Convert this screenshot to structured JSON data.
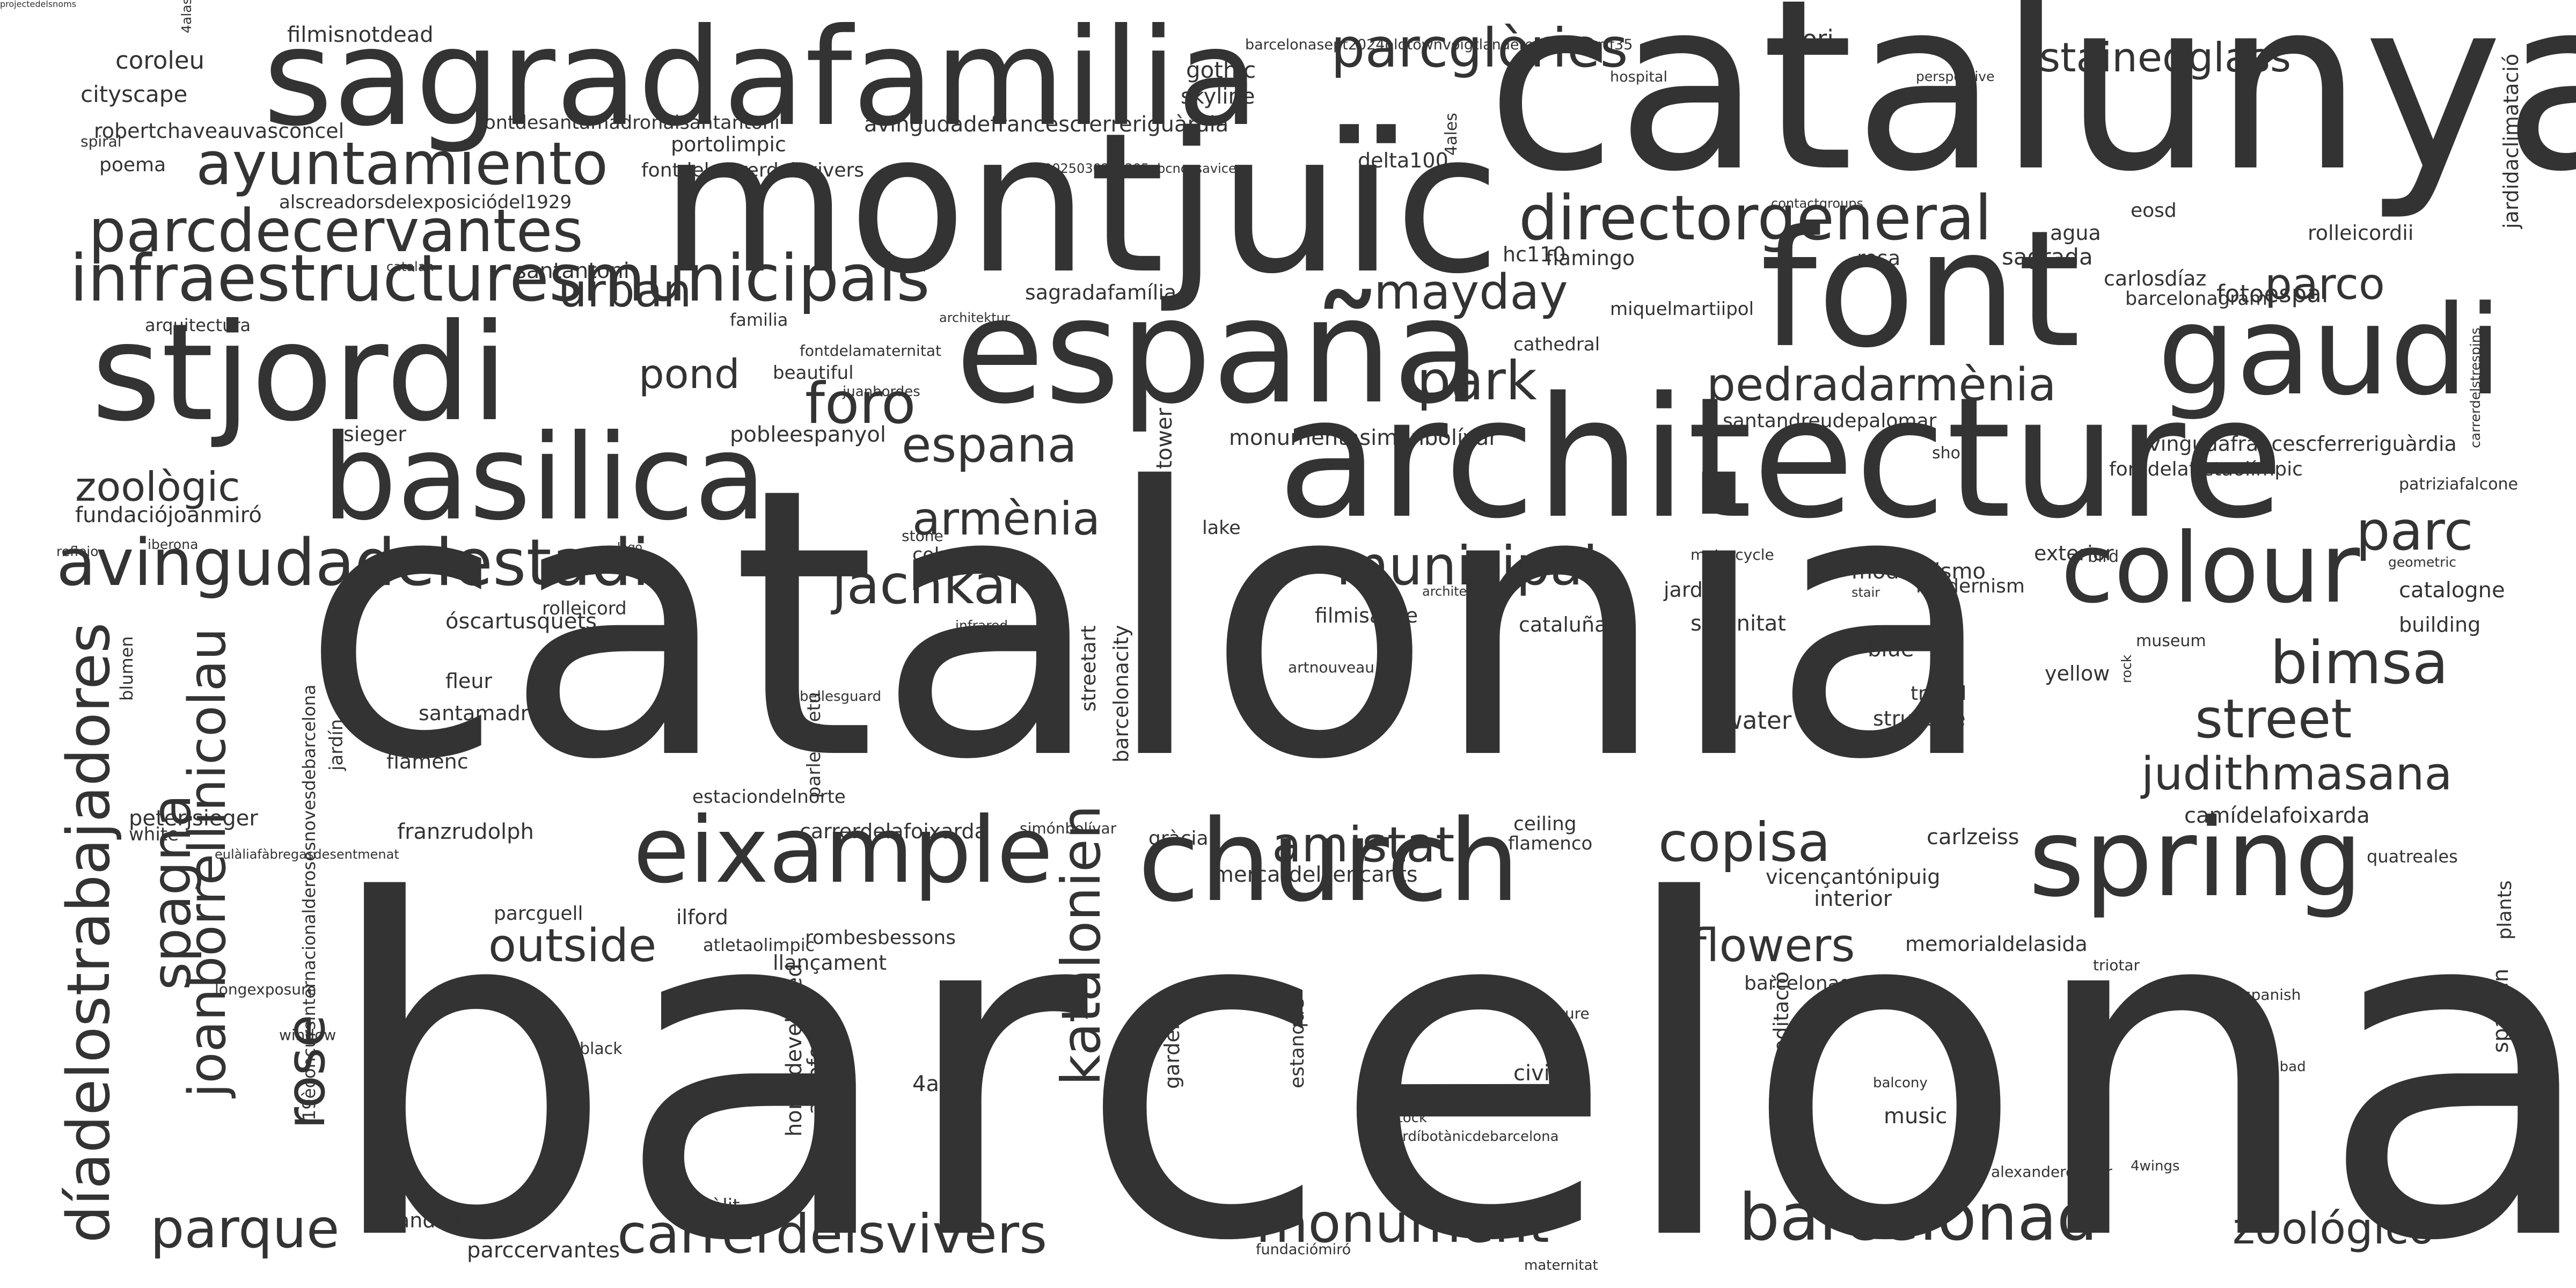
{
  "text_color": "#333333",
  "background_color": "#ffffff",
  "words": [
    {
      "text": "barcelona",
      "weight": 1.0
    },
    {
      "text": "catalonia",
      "weight": 0.82
    },
    {
      "text": "catalunya",
      "weight": 0.5
    },
    {
      "text": "montjuïc",
      "weight": 0.44
    },
    {
      "text": "architecture",
      "weight": 0.38
    },
    {
      "text": "sagradafamilia",
      "weight": 0.34
    },
    {
      "text": "font",
      "weight": 0.33
    },
    {
      "text": "españa",
      "weight": 0.3
    },
    {
      "text": "stjordi",
      "weight": 0.29
    },
    {
      "text": "gaudi",
      "weight": 0.29
    },
    {
      "text": "basilica",
      "weight": 0.27
    },
    {
      "text": "church",
      "weight": 0.26
    },
    {
      "text": "spring",
      "weight": 0.26
    },
    {
      "text": "colour",
      "weight": 0.21
    },
    {
      "text": "eixample",
      "weight": 0.2
    },
    {
      "text": "infraestructuresmunicipals",
      "weight": 0.15
    },
    {
      "text": "avingudadelestadi",
      "weight": 0.15
    },
    {
      "text": "díadelostrabajadores",
      "weight": 0.15
    },
    {
      "text": "barcelonad",
      "weight": 0.15
    },
    {
      "text": "ayuntamiento",
      "weight": 0.14
    },
    {
      "text": "directorgeneral",
      "weight": 0.14
    },
    {
      "text": "joanborrellinicolau",
      "weight": 0.14
    },
    {
      "text": "parcdecervantes",
      "weight": 0.13
    },
    {
      "text": "parcglòries",
      "weight": 0.13
    },
    {
      "text": "mayday",
      "weight": 0.13
    },
    {
      "text": "foro",
      "weight": 0.13
    },
    {
      "text": "park",
      "weight": 0.13
    },
    {
      "text": "pedradarmènia",
      "weight": 0.13
    },
    {
      "text": "espana",
      "weight": 0.13
    },
    {
      "text": "armènia",
      "weight": 0.13
    },
    {
      "text": "municipal",
      "weight": 0.13
    },
    {
      "text": "jachkar",
      "weight": 0.13
    },
    {
      "text": "bimsa",
      "weight": 0.13
    },
    {
      "text": "street",
      "weight": 0.13
    },
    {
      "text": "copisa",
      "weight": 0.13
    },
    {
      "text": "amistat",
      "weight": 0.13
    },
    {
      "text": "outside",
      "weight": 0.13
    },
    {
      "text": "flowers",
      "weight": 0.13
    },
    {
      "text": "parque",
      "weight": 0.13
    },
    {
      "text": "carrerdelsvivers",
      "weight": 0.13
    },
    {
      "text": "monument",
      "weight": 0.13
    },
    {
      "text": "zoológico",
      "weight": 0.13
    },
    {
      "text": "judithmasana",
      "weight": 0.13
    },
    {
      "text": "parc",
      "weight": 0.13
    },
    {
      "text": "rose",
      "weight": 0.13
    },
    {
      "text": "katalonien",
      "weight": 0.13
    },
    {
      "text": "spagna",
      "weight": 0.13
    },
    {
      "text": "stainedglass",
      "weight": 0.11
    },
    {
      "text": "urban",
      "weight": 0.11
    },
    {
      "text": "parco",
      "weight": 0.11
    },
    {
      "text": "pond",
      "weight": 0.11
    },
    {
      "text": "zoològic",
      "weight": 0.11
    },
    {
      "text": "coroleu",
      "weight": 0.06
    },
    {
      "text": "cityscape",
      "weight": 0.06
    },
    {
      "text": "filmisnotdead",
      "weight": 0.06
    },
    {
      "text": "gothic",
      "weight": 0.06
    },
    {
      "text": "skyline",
      "weight": 0.06
    },
    {
      "text": "fiori",
      "weight": 0.06
    },
    {
      "text": "robertchaveauvasconcel",
      "weight": 0.06
    },
    {
      "text": "fontdesantamadronaisantantoni",
      "weight": 0.05
    },
    {
      "text": "avingudadefrancescferreriguàrdia",
      "weight": 0.06
    },
    {
      "text": "portolimpic",
      "weight": 0.06
    },
    {
      "text": "poema",
      "weight": 0.06
    },
    {
      "text": "fontdelcarrerdelsvivers",
      "weight": 0.06
    },
    {
      "text": "alscreadorsdelexposiciódel1929",
      "weight": 0.06
    },
    {
      "text": "santantoni",
      "weight": 0.06
    },
    {
      "text": "arquitectura",
      "weight": 0.05
    },
    {
      "text": "familia",
      "weight": 0.06
    },
    {
      "text": "architektur",
      "weight": 0.04
    },
    {
      "text": "delta100",
      "weight": 0.06
    },
    {
      "text": "hc110",
      "weight": 0.06
    },
    {
      "text": "flamingo",
      "weight": 0.06
    },
    {
      "text": "rosa",
      "weight": 0.06
    },
    {
      "text": "sagrada",
      "weight": 0.06
    },
    {
      "text": "agua",
      "weight": 0.06
    },
    {
      "text": "eosd",
      "weight": 0.06
    },
    {
      "text": "rolleicordii",
      "weight": 0.06
    },
    {
      "text": "carlosdíaz",
      "weight": 0.06
    },
    {
      "text": "fotoespai",
      "weight": 0.07
    },
    {
      "text": "sagradafamília",
      "weight": 0.06
    },
    {
      "text": "miquelmartiipol",
      "weight": 0.06
    },
    {
      "text": "cathedral",
      "weight": 0.06
    },
    {
      "text": "barcelonagram",
      "weight": 0.06
    },
    {
      "text": "fontdelamaternitat",
      "weight": 0.06
    },
    {
      "text": "beautiful",
      "weight": 0.04
    },
    {
      "text": "juanbordes",
      "weight": 0.06
    },
    {
      "text": "pobleespanyol",
      "weight": 0.04
    },
    {
      "text": "sieger",
      "weight": 0.07
    },
    {
      "text": "monumentasimónbolívar",
      "weight": 0.06
    },
    {
      "text": "santandreudepalomar",
      "weight": 0.07
    },
    {
      "text": "avingudafrancescferreriguàrdia",
      "weight": 0.06
    },
    {
      "text": "fontdelatletaolímpic",
      "weight": 0.06
    },
    {
      "text": "patriziafalcone",
      "weight": 0.06
    },
    {
      "text": "shop",
      "weight": 0.05
    },
    {
      "text": "stone",
      "weight": 0.05
    },
    {
      "text": "fundaciójoanmiró",
      "weight": 0.05
    },
    {
      "text": "reflejo",
      "weight": 0.06
    },
    {
      "text": "iberona",
      "weight": 0.04
    },
    {
      "text": "lago",
      "weight": 0.04
    },
    {
      "text": "lake",
      "weight": 0.04
    },
    {
      "text": "column",
      "weight": 0.05
    },
    {
      "text": "modernismo",
      "weight": 0.05
    },
    {
      "text": "exterior",
      "weight": 0.07
    },
    {
      "text": "bird",
      "weight": 0.06
    },
    {
      "text": "modernism",
      "weight": 0.05
    },
    {
      "text": "jardí",
      "weight": 0.06
    },
    {
      "text": "serenitat",
      "weight": 0.06
    },
    {
      "text": "cataluña",
      "weight": 0.06
    },
    {
      "text": "filmisalive",
      "weight": 0.06
    },
    {
      "text": "catalogne",
      "weight": 0.06
    },
    {
      "text": "building",
      "weight": 0.06
    },
    {
      "text": "rolleicord",
      "weight": 0.06
    },
    {
      "text": "óscartusquets",
      "weight": 0.05
    },
    {
      "text": "infrared",
      "weight": 0.06
    },
    {
      "text": "museum",
      "weight": 0.04
    },
    {
      "text": "blue",
      "weight": 0.05
    },
    {
      "text": "yellow",
      "weight": 0.06
    },
    {
      "text": "travel",
      "weight": 0.06
    },
    {
      "text": "structure",
      "weight": 0.06
    },
    {
      "text": "water",
      "weight": 0.06
    },
    {
      "text": "fleur",
      "weight": 0.07
    },
    {
      "text": "santamadrona",
      "weight": 0.06
    },
    {
      "text": "flamenc",
      "weight": 0.06
    },
    {
      "text": "bellesguard",
      "weight": 0.06
    },
    {
      "text": "estaciondelnorte",
      "weight": 0.04
    },
    {
      "text": "white",
      "weight": 0.05
    },
    {
      "text": "franzrudolph",
      "weight": 0.05
    },
    {
      "text": "carrerdelafoixarda",
      "weight": 0.06
    },
    {
      "text": "simónbolívar",
      "weight": 0.06
    },
    {
      "text": "gràcia",
      "weight": 0.04
    },
    {
      "text": "ceiling",
      "weight": 0.05
    },
    {
      "text": "flamenco",
      "weight": 0.06
    },
    {
      "text": "carlzeiss",
      "weight": 0.05
    },
    {
      "text": "camídelafoixarda",
      "weight": 0.06
    },
    {
      "text": "peterjsieger",
      "weight": 0.06
    },
    {
      "text": "eulàliafàbregasdesentmenat",
      "weight": 0.06
    },
    {
      "text": "quatreales",
      "weight": 0.04
    },
    {
      "text": "mercatdelsencants",
      "weight": 0.05
    },
    {
      "text": "vicençantónipuig",
      "weight": 0.06
    },
    {
      "text": "interior",
      "weight": 0.05
    },
    {
      "text": "parcguell",
      "weight": 0.06
    },
    {
      "text": "ilford",
      "weight": 0.06
    },
    {
      "text": "atletaolimpic",
      "weight": 0.05
    },
    {
      "text": "rombesbessons",
      "weight": 0.05
    },
    {
      "text": "llançament",
      "weight": 0.06
    },
    {
      "text": "memorialdelasida",
      "weight": 0.05
    },
    {
      "text": "barcelonagramers",
      "weight": 0.05
    },
    {
      "text": "triotar",
      "weight": 0.05
    },
    {
      "text": "longexposure",
      "weight": 0.04
    },
    {
      "text": "spanish",
      "weight": 0.04
    },
    {
      "text": "nature",
      "weight": 0.04
    },
    {
      "text": "window",
      "weight": 0.04
    },
    {
      "text": "black",
      "weight": 0.04
    },
    {
      "text": "4ailes",
      "weight": 0.04
    },
    {
      "text": "civic",
      "weight": 0.06
    },
    {
      "text": "lluísabad",
      "weight": 0.06
    },
    {
      "text": "balcony",
      "weight": 0.04
    },
    {
      "text": "music",
      "weight": 0.04
    },
    {
      "text": "stock",
      "weight": 0.06
    },
    {
      "text": "jardíbotànicdebarcelona",
      "weight": 0.04
    },
    {
      "text": "alexandercalder",
      "weight": 0.04
    },
    {
      "text": "4wings",
      "weight": 0.04
    },
    {
      "text": "monòlit",
      "weight": 0.04
    },
    {
      "text": "andreualfaro",
      "weight": 0.05
    },
    {
      "text": "parccervantes",
      "weight": 0.05
    },
    {
      "text": "maternitat",
      "weight": 0.06
    },
    {
      "text": "fundaciómiró",
      "weight": 0.04
    },
    {
      "text": "barcelonasept2024oldtownvoigtlanderektarhexarrf35",
      "weight": 0.04
    },
    {
      "text": "hospital",
      "weight": 0.04
    },
    {
      "text": "perspective",
      "weight": 0.04
    },
    {
      "text": "4alas",
      "weight": 0.04
    },
    {
      "text": "spiral",
      "weight": 0.04
    },
    {
      "text": "20250302c0305abcncasavicens",
      "weight": 0.04
    },
    {
      "text": "contactgroups",
      "weight": 0.04
    },
    {
      "text": "catalan",
      "weight": 0.04
    },
    {
      "text": "architect",
      "weight": 0.04
    },
    {
      "text": "picasso",
      "weight": 0.04
    },
    {
      "text": "stair",
      "weight": 0.04
    },
    {
      "text": "geometric",
      "weight": 0.04
    },
    {
      "text": "motorcycle",
      "weight": 0.04
    },
    {
      "text": "artnouveau",
      "weight": 0.04
    },
    {
      "text": "4ales",
      "weight": 0.04
    },
    {
      "text": "tower",
      "weight": 0.05
    },
    {
      "text": "blumen",
      "weight": 0.06
    },
    {
      "text": "19èconcursinternacionalderosesnovesdebarcelona",
      "weight": 0.05
    },
    {
      "text": "jardín",
      "weight": 0.05
    },
    {
      "text": "parlemdetu",
      "weight": 0.05
    },
    {
      "text": "streetart",
      "weight": 0.05
    },
    {
      "text": "barcelonacity",
      "weight": 0.05
    },
    {
      "text": "jardidaclimatació",
      "weight": 0.05
    },
    {
      "text": "carrerdelstrespins",
      "weight": 0.05
    },
    {
      "text": "rock",
      "weight": 0.04
    },
    {
      "text": "plants",
      "weight": 0.04
    },
    {
      "text": "spanien",
      "weight": 0.05
    },
    {
      "text": "homedeveloped",
      "weight": 0.05
    },
    {
      "text": "autofocus",
      "weight": 0.05
    },
    {
      "text": "garden",
      "weight": 0.06
    },
    {
      "text": "estanque",
      "weight": 0.05
    },
    {
      "text": "meditació",
      "weight": 0.05
    },
    {
      "text": "projectedelsnoms",
      "weight": 0.05
    }
  ]
}
